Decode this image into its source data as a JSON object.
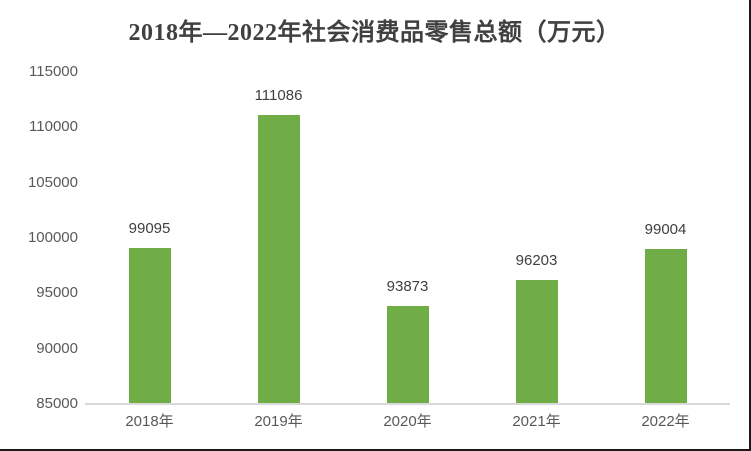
{
  "chart_data": {
    "type": "bar",
    "title": "2018年—2022年社会消费品零售总额（万元）",
    "categories": [
      "2018年",
      "2019年",
      "2020年",
      "2021年",
      "2022年"
    ],
    "values": [
      99095,
      111086,
      93873,
      96203,
      99004
    ],
    "data_labels": [
      "99095",
      "111086",
      "93873",
      "96203",
      "99004"
    ],
    "xlabel": "",
    "ylabel": "",
    "ylim": [
      85000,
      115000
    ],
    "yticks": [
      85000,
      90000,
      95000,
      100000,
      105000,
      110000,
      115000
    ],
    "grid": false,
    "legend_position": "none",
    "bar_color": "#70AD47",
    "axis_line_color": "#D9D9D9",
    "title_color": "#404040",
    "tick_label_color": "#595959",
    "data_label_color": "#404040",
    "frame_border_color": "#1A1A1A"
  }
}
